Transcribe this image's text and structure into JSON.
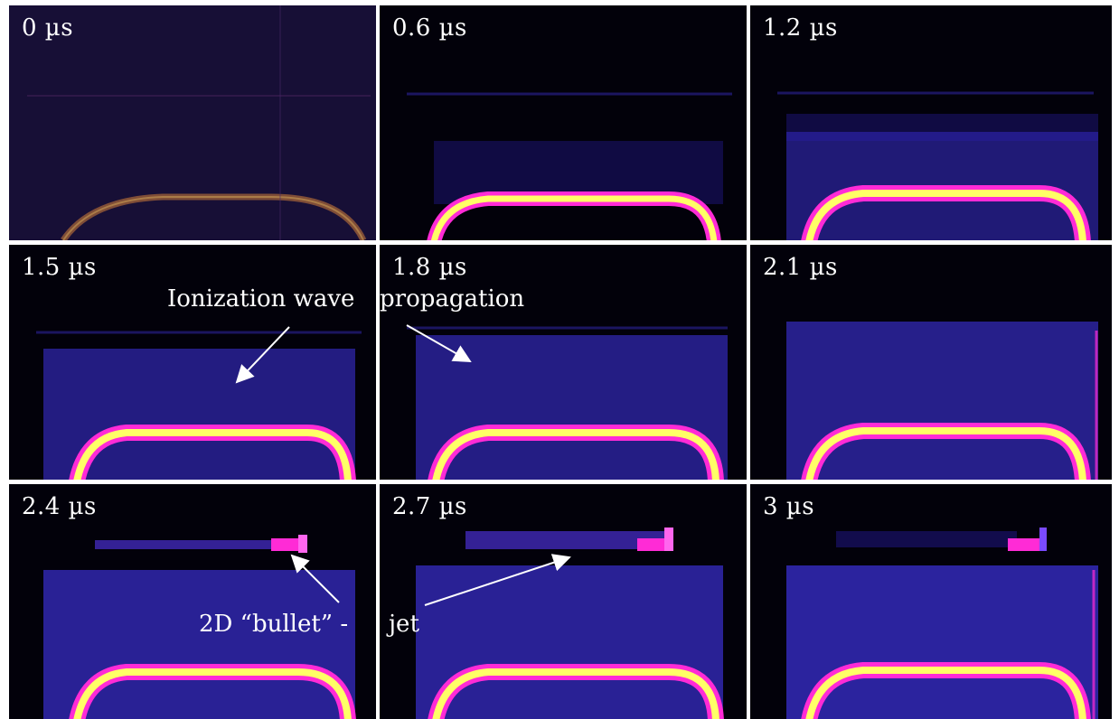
{
  "figure": {
    "frames": [
      {
        "time_label": "0 µs",
        "intensity": 0.15
      },
      {
        "time_label": "0.6 µs",
        "intensity": 0.6
      },
      {
        "time_label": "1.2 µs",
        "intensity": 0.75
      },
      {
        "time_label": "1.5 µs",
        "intensity": 0.85
      },
      {
        "time_label": "1.8 µs",
        "intensity": 0.9
      },
      {
        "time_label": "2.1 µs",
        "intensity": 0.95
      },
      {
        "time_label": "2.4 µs",
        "intensity": 1.0
      },
      {
        "time_label": "2.7 µs",
        "intensity": 1.0
      },
      {
        "time_label": "3 µs",
        "intensity": 1.0
      }
    ],
    "annotations": {
      "ionization_part1": "Ionization wave",
      "ionization_part2": "propagation",
      "bullet_part1": "2D “bullet” -",
      "bullet_part2": "jet"
    },
    "colors": {
      "background": "#02010a",
      "glow": "#3a2fd0",
      "electrode_hot": "#ffff66",
      "electrode_edge": "#ff2bd6",
      "separator": "#ffffff"
    }
  }
}
